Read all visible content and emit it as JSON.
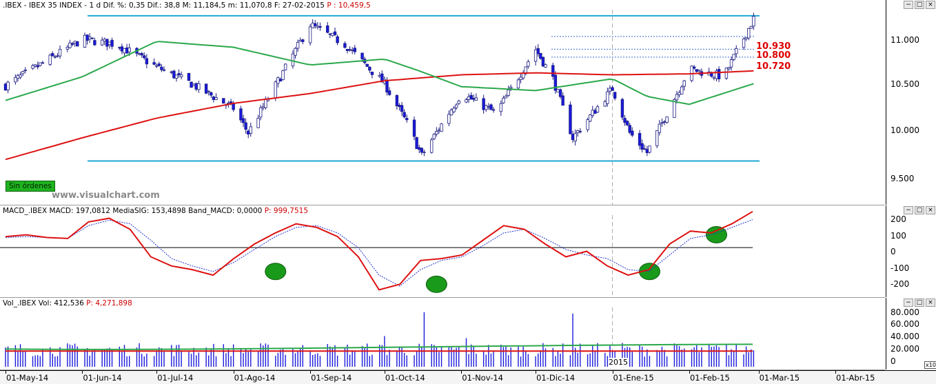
{
  "price_header": {
    "symbol": ".IBEX",
    "name": "IBEX 35 INDEX",
    "period": "1 d",
    "pct_label": "Dif. %:",
    "pct_value": "0,35",
    "dif_label": "Dif.:",
    "dif_value": "38,8",
    "max_label": "M:",
    "max_value": "11,184,5",
    "min_label": "m:",
    "min_value": "11,070,8",
    "date_label": "F:",
    "date_value": "27-02-2015",
    "p_label": "P :",
    "p_value": "10,459,5"
  },
  "macd_header": {
    "text": "MACD_.IBEX MACD: 197,0812 MediaSIG: 153,4898 Band_MACD: 0,0000",
    "p_label": "P:",
    "p_value": "999,7515"
  },
  "vol_header": {
    "text": "Vol_.IBEX Vol: 412,536",
    "p_label": "P:",
    "p_value": "4,271,898"
  },
  "no_orders_label": "Sin órdenes",
  "watermark": "www.visualchart.com",
  "level_labels": [
    "10.930",
    "10.800",
    "10.720"
  ],
  "year_label": "2015",
  "x10_label": "x10",
  "window_buttons": [
    "−",
    "□",
    "×"
  ],
  "colors": {
    "candle_up": "#ffffff",
    "candle_down": "#1a1adc",
    "ma_short": "#2aa84a",
    "ma_long": "#dd1111",
    "range_lines": "#1ea7d6",
    "macd_line": "#dd1111",
    "macd_signal": "#2233cc",
    "cross_marker": "#1a9a1a",
    "volume_bar": "#1a1adc"
  },
  "chart_data": [
    {
      "type": "candlestick",
      "title": "IBEX 35 INDEX",
      "x_labels": [
        "01-May-14",
        "01-Jun-14",
        "01-Jul-14",
        "01-Ago-14",
        "01-Sep-14",
        "01-Oct-14",
        "01-Nov-14",
        "01-Dic-14",
        "01-Ene-15",
        "01-Feb-15",
        "01-Mar-15",
        "01-Abr-15"
      ],
      "y_ticks": [
        "11.000",
        "10.500",
        "10.000",
        "9.500"
      ],
      "ylim": [
        9220,
        11300
      ],
      "close_path": [
        [
          "01-May-14",
          10430
        ],
        [
          "01-Jun-14",
          10900
        ],
        [
          "15-Jun-14",
          10850
        ],
        [
          "01-Jul-14",
          10620
        ],
        [
          "15-Jul-14",
          10450
        ],
        [
          "01-Ago-14",
          10200
        ],
        [
          "07-Ago-14",
          9950
        ],
        [
          "15-Ago-14",
          10300
        ],
        [
          "01-Sep-14",
          11050
        ],
        [
          "15-Sep-14",
          10850
        ],
        [
          "01-Oct-14",
          10450
        ],
        [
          "10-Oct-14",
          10050
        ],
        [
          "16-Oct-14",
          9720
        ],
        [
          "01-Nov-14",
          10350
        ],
        [
          "15-Nov-14",
          10150
        ],
        [
          "01-Dic-14",
          10800
        ],
        [
          "08-Dic-14",
          10500
        ],
        [
          "16-Dic-14",
          9900
        ],
        [
          "01-Ene-15",
          10400
        ],
        [
          "08-Ene-15",
          9950
        ],
        [
          "15-Ene-15",
          9750
        ],
        [
          "01-Feb-15",
          10600
        ],
        [
          "15-Feb-15",
          10520
        ],
        [
          "27-Feb-15",
          11110
        ]
      ],
      "ma_short_path": [
        [
          "01-May-14",
          10280
        ],
        [
          "01-Jun-14",
          10520
        ],
        [
          "01-Jul-14",
          10880
        ],
        [
          "01-Ago-14",
          10820
        ],
        [
          "01-Sep-14",
          10640
        ],
        [
          "01-Oct-14",
          10700
        ],
        [
          "15-Oct-14",
          10580
        ],
        [
          "01-Nov-14",
          10420
        ],
        [
          "01-Dic-14",
          10380
        ],
        [
          "01-Ene-15",
          10500
        ],
        [
          "15-Ene-15",
          10320
        ],
        [
          "01-Feb-15",
          10240
        ],
        [
          "27-Feb-15",
          10450
        ]
      ],
      "ma_long_path": [
        [
          "01-May-14",
          9680
        ],
        [
          "01-Jun-14",
          9900
        ],
        [
          "01-Jul-14",
          10100
        ],
        [
          "01-Ago-14",
          10250
        ],
        [
          "01-Sep-14",
          10350
        ],
        [
          "01-Oct-14",
          10480
        ],
        [
          "01-Nov-14",
          10540
        ],
        [
          "01-Dic-14",
          10560
        ],
        [
          "01-Ene-15",
          10540
        ],
        [
          "01-Feb-15",
          10550
        ],
        [
          "27-Feb-15",
          10580
        ]
      ],
      "range_high": 11140,
      "range_low": 9665,
      "levels": [
        10930,
        10800,
        10720
      ]
    },
    {
      "type": "line",
      "title": "MACD",
      "y_ticks": [
        "200",
        "100",
        "0",
        "-100",
        "-200"
      ],
      "ylim": [
        -270,
        230
      ],
      "series": [
        {
          "name": "MACD",
          "values": [
            60,
            70,
            55,
            50,
            140,
            160,
            100,
            -50,
            -100,
            -120,
            -150,
            -60,
            20,
            80,
            130,
            110,
            60,
            -50,
            -230,
            -200,
            -70,
            -60,
            -40,
            40,
            120,
            100,
            20,
            -50,
            -20,
            -100,
            -150,
            -120,
            20,
            90,
            80,
            130,
            197
          ]
        },
        {
          "name": "MediaSIG",
          "values": [
            55,
            60,
            55,
            50,
            120,
            150,
            130,
            40,
            -60,
            -100,
            -130,
            -80,
            -10,
            60,
            110,
            120,
            80,
            0,
            -150,
            -210,
            -120,
            -70,
            -50,
            10,
            80,
            100,
            50,
            -10,
            -40,
            -60,
            -120,
            -130,
            -40,
            50,
            70,
            110,
            153
          ]
        }
      ],
      "crossovers": [
        {
          "date": "18-Ago-14",
          "value": -130
        },
        {
          "date": "22-Oct-14",
          "value": -200
        },
        {
          "date": "16-Ene-15",
          "value": -130
        },
        {
          "date": "12-Feb-15",
          "value": 70
        }
      ]
    },
    {
      "type": "bar",
      "title": "Volume",
      "y_ticks": [
        "80.000",
        "60.000",
        "40.000",
        "20.000",
        "0"
      ],
      "ylim": [
        0,
        87000
      ],
      "spikes": [
        {
          "date": "17-Oct-14",
          "value": 80000
        },
        {
          "date": "16-Dic-14",
          "value": 78000
        },
        {
          "date": "01-Oct-14",
          "value": 45000
        },
        {
          "date": "03-Nov-14",
          "value": 42000
        },
        {
          "date": "05-Ene-15",
          "value": 35000
        }
      ],
      "ma_green": 26000,
      "ma_red": 23000
    }
  ]
}
